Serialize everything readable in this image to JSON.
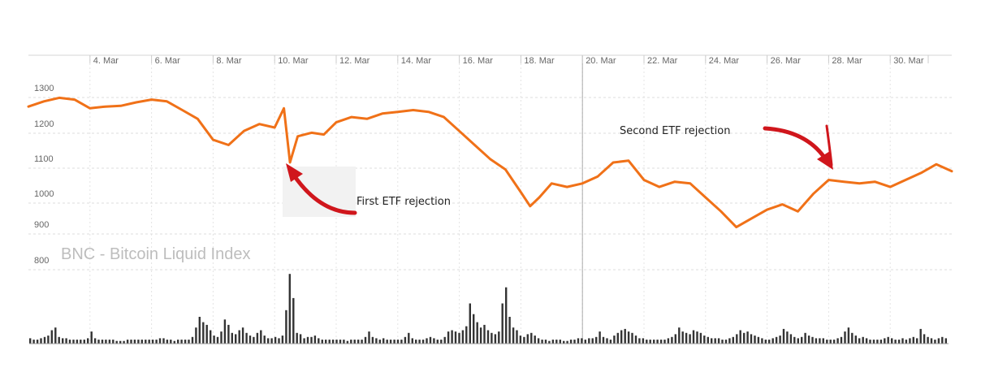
{
  "chart_data": {
    "type": "line",
    "title": "BNC - Bitcoin Liquid Index",
    "xlabel": "",
    "ylabel": "",
    "x_tick_labels": [
      "4. Mar",
      "6. Mar",
      "8. Mar",
      "10. Mar",
      "12. Mar",
      "14. Mar",
      "16. Mar",
      "18. Mar",
      "20. Mar",
      "22. Mar",
      "24. Mar",
      "26. Mar",
      "28. Mar",
      "30. Mar"
    ],
    "y_tick_labels": [
      "1300",
      "1200",
      "1100",
      "1000",
      "900",
      "800"
    ],
    "xlim_days": [
      2.0,
      32.0
    ],
    "ylim": [
      800,
      1340
    ],
    "grid": true,
    "colors": {
      "price_line": "#f07118",
      "volume_bars": "#333333",
      "arrow": "#d0161c",
      "grid": "#dddddd"
    },
    "series": [
      {
        "values_x_day_of_march": [
          2.0,
          2.5,
          3.0,
          3.5,
          4.0,
          4.5,
          5.0,
          5.5,
          6.0,
          6.5,
          7.0,
          7.5,
          8.0,
          8.5,
          9.0,
          9.5,
          10.0,
          10.3,
          10.5,
          10.75,
          11.2,
          11.6,
          12.0,
          12.5,
          13.0,
          13.5,
          14.0,
          14.5,
          15.0,
          15.5,
          16.0,
          16.5,
          17.0,
          17.5,
          18.0,
          18.3,
          18.6,
          19.0,
          19.5,
          20.0,
          20.5,
          21.0,
          21.5,
          22.0,
          22.5,
          23.0,
          23.5,
          24.0,
          24.5,
          25.0,
          25.5,
          26.0,
          26.5,
          27.0,
          27.5,
          28.0,
          28.5,
          29.0,
          29.5,
          30.0,
          30.5,
          31.0,
          31.5,
          32.0
        ],
        "values": [
          1260,
          1275,
          1285,
          1280,
          1255,
          1260,
          1262,
          1272,
          1280,
          1275,
          1250,
          1225,
          1165,
          1150,
          1190,
          1210,
          1200,
          1255,
          1100,
          1175,
          1185,
          1180,
          1215,
          1230,
          1225,
          1240,
          1245,
          1250,
          1245,
          1230,
          1190,
          1150,
          1110,
          1080,
          1015,
          975,
          1000,
          1040,
          1030,
          1040,
          1060,
          1100,
          1105,
          1050,
          1030,
          1045,
          1040,
          1000,
          960,
          915,
          940,
          965,
          980,
          960,
          1010,
          1050,
          1045,
          1040,
          1045,
          1030,
          1050,
          1070,
          1095,
          1075
        ]
      }
    ],
    "volume": {
      "values": [
        4,
        3,
        3,
        4,
        5,
        6,
        10,
        12,
        5,
        4,
        4,
        3,
        3,
        3,
        3,
        3,
        4,
        9,
        4,
        3,
        3,
        3,
        3,
        3,
        2,
        2,
        2,
        3,
        3,
        3,
        3,
        3,
        3,
        3,
        3,
        3,
        4,
        4,
        3,
        3,
        2,
        3,
        3,
        3,
        3,
        5,
        12,
        20,
        16,
        14,
        10,
        6,
        5,
        9,
        18,
        14,
        8,
        7,
        10,
        12,
        8,
        6,
        5,
        8,
        10,
        6,
        4,
        4,
        5,
        4,
        6,
        25,
        52,
        34,
        8,
        7,
        4,
        5,
        5,
        6,
        4,
        3,
        3,
        3,
        3,
        3,
        3,
        3,
        2,
        3,
        3,
        3,
        3,
        5,
        9,
        5,
        4,
        3,
        4,
        3,
        3,
        3,
        3,
        3,
        5,
        8,
        4,
        3,
        3,
        3,
        4,
        5,
        4,
        3,
        3,
        5,
        9,
        10,
        9,
        8,
        10,
        13,
        30,
        22,
        16,
        12,
        14,
        10,
        8,
        7,
        9,
        30,
        42,
        20,
        12,
        10,
        6,
        5,
        7,
        8,
        6,
        4,
        3,
        3,
        2,
        3,
        3,
        3,
        2,
        2,
        3,
        3,
        4,
        4,
        3,
        4,
        4,
        5,
        9,
        5,
        4,
        3,
        6,
        8,
        10,
        11,
        9,
        8,
        6,
        4,
        4,
        3,
        3,
        3,
        3,
        3,
        3,
        4,
        5,
        7,
        12,
        9,
        8,
        7,
        10,
        9,
        8,
        6,
        5,
        4,
        4,
        4,
        3,
        3,
        4,
        5,
        7,
        10,
        8,
        9,
        7,
        6,
        5,
        4,
        3,
        3,
        4,
        5,
        6,
        11,
        9,
        7,
        5,
        4,
        5,
        8,
        6,
        5,
        4,
        4,
        4,
        3,
        3,
        3,
        4,
        5,
        9,
        12,
        8,
        6,
        4,
        5,
        4,
        3,
        3,
        3,
        3,
        4,
        5,
        4,
        3,
        3,
        4,
        3,
        4,
        5,
        4,
        11,
        7,
        5,
        4,
        3,
        4,
        5,
        4
      ]
    },
    "annotations": [
      {
        "label": "First ETF rejection"
      },
      {
        "label": "Second ETF rejection"
      }
    ]
  }
}
